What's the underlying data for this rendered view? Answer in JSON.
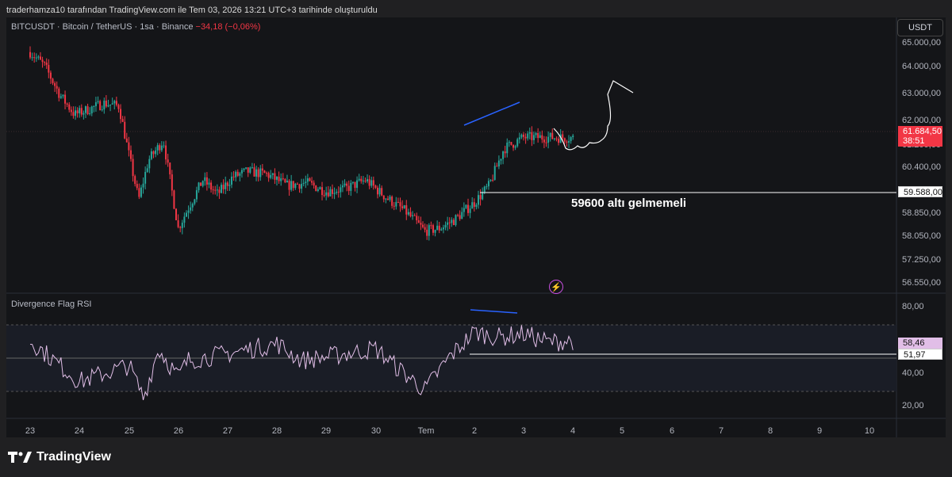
{
  "header": {
    "attribution": "traderhamza10 tarafından TradingView.com ile Tem 03, 2026 13:21 UTC+3 tarihinde oluşturuldu"
  },
  "symbol": {
    "text": "BITCUSDT · Bitcoin / TetherUS · 1sa · Binance",
    "change": "−34,18 (−0,06%)"
  },
  "currency": "USDT",
  "price_axis": [
    "65.000,00",
    "64.000,00",
    "63.000,00",
    "62.000,00",
    "61.200,00",
    "60.400,00",
    "58.850,00",
    "58.050,00",
    "57.250,00",
    "56.550,00"
  ],
  "current_price": {
    "value": "61.684,50",
    "countdown": "38:51",
    "color": "#f23645"
  },
  "support_price": "59.588,00",
  "annotation": "59600 altı gelmemeli",
  "rsi": {
    "title": "Divergence Flag RSI",
    "axis": [
      "80,00",
      "40,00",
      "20,00"
    ],
    "value_tag": "58,46",
    "level_tag": "51,97"
  },
  "time_axis": [
    "23",
    "24",
    "25",
    "26",
    "27",
    "28",
    "29",
    "30",
    "Tem",
    "2",
    "3",
    "4",
    "5",
    "6",
    "7",
    "8",
    "9",
    "10"
  ],
  "logo": "TradingView",
  "colors": {
    "up": "#26a69a",
    "down": "#f23645",
    "bg": "#141518",
    "rsi": "#e1bee7",
    "divergence": "#2962ff"
  },
  "chart_data": {
    "type": "candlestick",
    "timeframe": "1h",
    "approx_close_path": [
      [
        0,
        64700
      ],
      [
        0.3,
        64200
      ],
      [
        0.6,
        63200
      ],
      [
        0.9,
        62500
      ],
      [
        1.2,
        62700
      ],
      [
        1.5,
        62900
      ],
      [
        1.8,
        62800
      ],
      [
        2.0,
        61100
      ],
      [
        2.2,
        59500
      ],
      [
        2.4,
        60900
      ],
      [
        2.7,
        61600
      ],
      [
        3.0,
        58500
      ],
      [
        3.2,
        59200
      ],
      [
        3.5,
        60200
      ],
      [
        3.8,
        59700
      ],
      [
        4.1,
        60300
      ],
      [
        4.4,
        60500
      ],
      [
        4.8,
        60400
      ],
      [
        5.2,
        60000
      ],
      [
        5.6,
        60100
      ],
      [
        6.0,
        59800
      ],
      [
        6.4,
        59900
      ],
      [
        6.8,
        60200
      ],
      [
        7.2,
        59600
      ],
      [
        7.6,
        59100
      ],
      [
        8.0,
        58400
      ],
      [
        8.3,
        58500
      ],
      [
        8.6,
        58800
      ],
      [
        9.0,
        59400
      ],
      [
        9.3,
        60000
      ],
      [
        9.6,
        61300
      ],
      [
        10.0,
        61700
      ],
      [
        10.5,
        61700
      ],
      [
        11.0,
        61684
      ]
    ],
    "ohlc_note": "Approximate hourly closes from Jun 23 to Jul 3; values in USDT"
  }
}
